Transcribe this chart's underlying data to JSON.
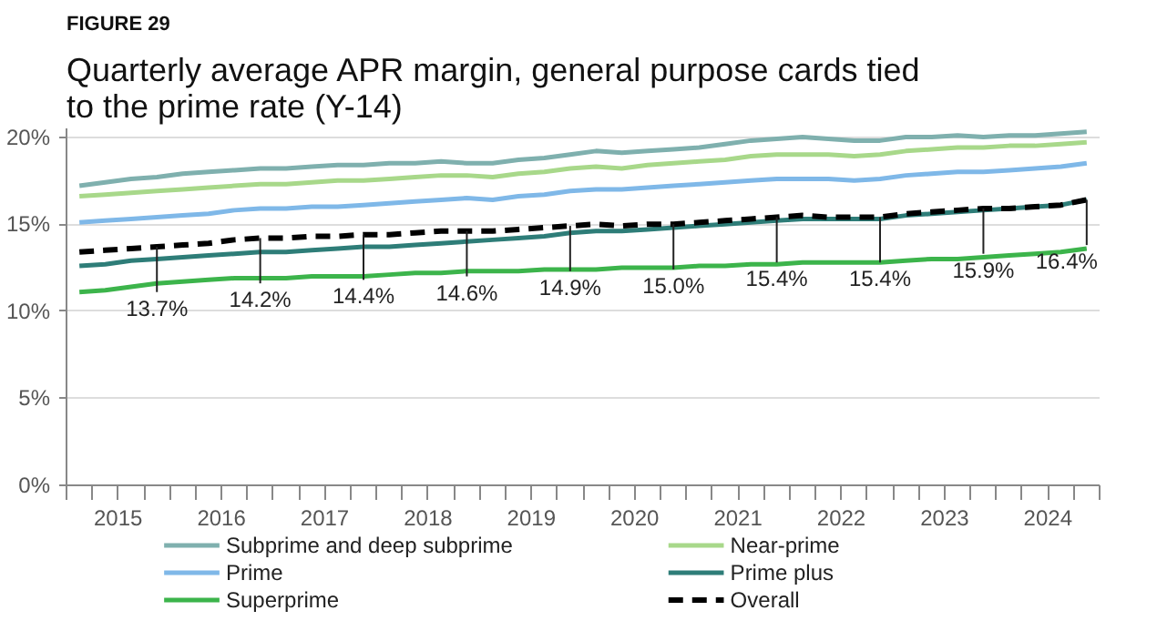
{
  "chart_data": {
    "type": "line",
    "title": "Quarterly average APR margin, general purpose cards tied to the prime rate (Y-14)",
    "annotations": [
      "FIGURE 29"
    ],
    "x": [
      2015.125,
      2015.375,
      2015.625,
      2015.875,
      2016.125,
      2016.375,
      2016.625,
      2016.875,
      2017.125,
      2017.375,
      2017.625,
      2017.875,
      2018.125,
      2018.375,
      2018.625,
      2018.875,
      2019.125,
      2019.375,
      2019.625,
      2019.875,
      2020.125,
      2020.375,
      2020.625,
      2020.875,
      2021.125,
      2021.375,
      2021.625,
      2021.875,
      2022.125,
      2022.375,
      2022.625,
      2022.875,
      2023.125,
      2023.375,
      2023.625,
      2023.875,
      2024.125,
      2024.375,
      2024.625,
      2024.875
    ],
    "xlim": [
      2015,
      2025
    ],
    "xticks": [
      {
        "value": 2015,
        "label": null
      },
      {
        "value": 2015.25,
        "label": null
      },
      {
        "value": 2015.5,
        "label": "2015"
      },
      {
        "value": 2015.75,
        "label": null
      },
      {
        "value": 2016,
        "label": null
      },
      {
        "value": 2016.25,
        "label": null
      },
      {
        "value": 2016.5,
        "label": "2016"
      },
      {
        "value": 2016.75,
        "label": null
      },
      {
        "value": 2017,
        "label": null
      },
      {
        "value": 2017.25,
        "label": null
      },
      {
        "value": 2017.5,
        "label": "2017"
      },
      {
        "value": 2017.75,
        "label": null
      },
      {
        "value": 2018,
        "label": null
      },
      {
        "value": 2018.25,
        "label": null
      },
      {
        "value": 2018.5,
        "label": "2018"
      },
      {
        "value": 2018.75,
        "label": null
      },
      {
        "value": 2019,
        "label": null
      },
      {
        "value": 2019.25,
        "label": null
      },
      {
        "value": 2019.5,
        "label": "2019"
      },
      {
        "value": 2019.75,
        "label": null
      },
      {
        "value": 2020,
        "label": null
      },
      {
        "value": 2020.25,
        "label": null
      },
      {
        "value": 2020.5,
        "label": "2020"
      },
      {
        "value": 2020.75,
        "label": null
      },
      {
        "value": 2021,
        "label": null
      },
      {
        "value": 2021.25,
        "label": null
      },
      {
        "value": 2021.5,
        "label": "2021"
      },
      {
        "value": 2021.75,
        "label": null
      },
      {
        "value": 2022,
        "label": null
      },
      {
        "value": 2022.25,
        "label": null
      },
      {
        "value": 2022.5,
        "label": "2022"
      },
      {
        "value": 2022.75,
        "label": null
      },
      {
        "value": 2023,
        "label": null
      },
      {
        "value": 2023.25,
        "label": null
      },
      {
        "value": 2023.5,
        "label": "2023"
      },
      {
        "value": 2023.75,
        "label": null
      },
      {
        "value": 2024,
        "label": null
      },
      {
        "value": 2024.25,
        "label": null
      },
      {
        "value": 2024.5,
        "label": "2024"
      },
      {
        "value": 2024.75,
        "label": null
      },
      {
        "value": 2025,
        "label": null
      }
    ],
    "ylim": [
      0,
      20.5
    ],
    "yticks": [
      {
        "value": 0,
        "label": "0%"
      },
      {
        "value": 5,
        "label": "5%"
      },
      {
        "value": 10,
        "label": "10%"
      },
      {
        "value": 15,
        "label": "15%"
      },
      {
        "value": 20,
        "label": "20%"
      }
    ],
    "grid": "y",
    "legend": "bottom",
    "series": [
      {
        "name": "Subprime and deep subprime",
        "color": "#7fb0ae",
        "values": [
          17.2,
          17.4,
          17.6,
          17.7,
          17.9,
          18.0,
          18.1,
          18.2,
          18.2,
          18.3,
          18.4,
          18.4,
          18.5,
          18.5,
          18.6,
          18.5,
          18.5,
          18.7,
          18.8,
          19.0,
          19.2,
          19.1,
          19.2,
          19.3,
          19.4,
          19.6,
          19.8,
          19.9,
          20.0,
          19.9,
          19.8,
          19.8,
          20.0,
          20.0,
          20.1,
          20.0,
          20.1,
          20.1,
          20.2,
          20.3
        ]
      },
      {
        "name": "Near-prime",
        "color": "#a8d88a",
        "values": [
          16.6,
          16.7,
          16.8,
          16.9,
          17.0,
          17.1,
          17.2,
          17.3,
          17.3,
          17.4,
          17.5,
          17.5,
          17.6,
          17.7,
          17.8,
          17.8,
          17.7,
          17.9,
          18.0,
          18.2,
          18.3,
          18.2,
          18.4,
          18.5,
          18.6,
          18.7,
          18.9,
          19.0,
          19.0,
          19.0,
          18.9,
          19.0,
          19.2,
          19.3,
          19.4,
          19.4,
          19.5,
          19.5,
          19.6,
          19.7
        ]
      },
      {
        "name": "Prime",
        "color": "#7fb8e8",
        "values": [
          15.1,
          15.2,
          15.3,
          15.4,
          15.5,
          15.6,
          15.8,
          15.9,
          15.9,
          16.0,
          16.0,
          16.1,
          16.2,
          16.3,
          16.4,
          16.5,
          16.4,
          16.6,
          16.7,
          16.9,
          17.0,
          17.0,
          17.1,
          17.2,
          17.3,
          17.4,
          17.5,
          17.6,
          17.6,
          17.6,
          17.5,
          17.6,
          17.8,
          17.9,
          18.0,
          18.0,
          18.1,
          18.2,
          18.3,
          18.5
        ]
      },
      {
        "name": "Prime plus",
        "color": "#2e7d78",
        "values": [
          12.6,
          12.7,
          12.9,
          13.0,
          13.1,
          13.2,
          13.3,
          13.4,
          13.4,
          13.5,
          13.6,
          13.7,
          13.7,
          13.8,
          13.9,
          14.0,
          14.1,
          14.2,
          14.3,
          14.5,
          14.6,
          14.6,
          14.7,
          14.8,
          14.9,
          15.0,
          15.1,
          15.2,
          15.3,
          15.3,
          15.3,
          15.3,
          15.5,
          15.6,
          15.7,
          15.8,
          15.9,
          16.0,
          16.1,
          16.4
        ]
      },
      {
        "name": "Superprime",
        "color": "#3cb44b",
        "values": [
          11.1,
          11.2,
          11.4,
          11.6,
          11.7,
          11.8,
          11.9,
          11.9,
          11.9,
          12.0,
          12.0,
          12.0,
          12.1,
          12.2,
          12.2,
          12.3,
          12.3,
          12.3,
          12.4,
          12.4,
          12.4,
          12.5,
          12.5,
          12.5,
          12.6,
          12.6,
          12.7,
          12.7,
          12.8,
          12.8,
          12.8,
          12.8,
          12.9,
          13.0,
          13.0,
          13.1,
          13.2,
          13.3,
          13.4,
          13.6
        ]
      },
      {
        "name": "Overall",
        "color": "#000000",
        "line_style": "dashed",
        "values": [
          13.4,
          13.5,
          13.6,
          13.7,
          13.8,
          13.9,
          14.1,
          14.2,
          14.2,
          14.3,
          14.3,
          14.4,
          14.4,
          14.5,
          14.6,
          14.6,
          14.6,
          14.7,
          14.8,
          14.9,
          15.0,
          14.9,
          15.0,
          15.0,
          15.1,
          15.2,
          15.3,
          15.4,
          15.5,
          15.4,
          15.4,
          15.4,
          15.6,
          15.7,
          15.8,
          15.9,
          15.9,
          16.0,
          16.1,
          16.4
        ],
        "value_labels": [
          null,
          null,
          null,
          "13.7%",
          null,
          null,
          null,
          "14.2%",
          null,
          null,
          null,
          "14.4%",
          null,
          null,
          null,
          "14.6%",
          null,
          null,
          null,
          "14.9%",
          null,
          null,
          null,
          "15.0%",
          null,
          null,
          null,
          "15.4%",
          null,
          null,
          null,
          "15.4%",
          null,
          null,
          null,
          "15.9%",
          null,
          null,
          null,
          "16.4%"
        ]
      }
    ]
  }
}
